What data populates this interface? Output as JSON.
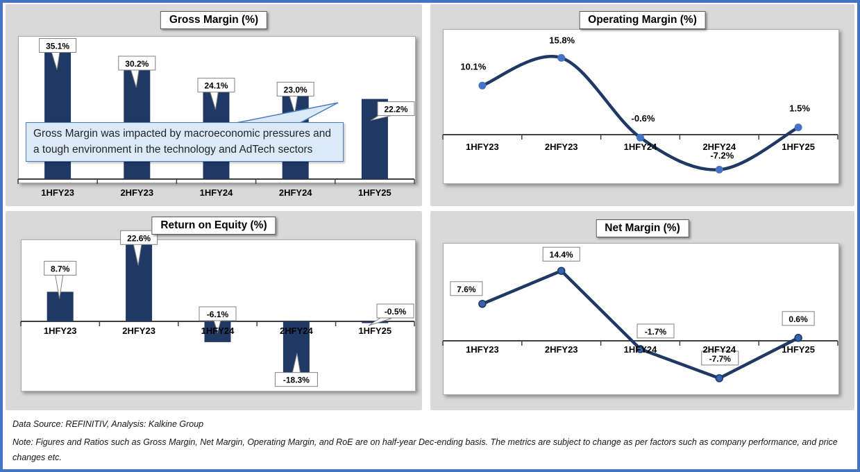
{
  "frame": {
    "border_color": "#4472C4",
    "panel_bg": "#D9D9D9"
  },
  "colors": {
    "bar": "#1F3864",
    "line": "#1F3864",
    "marker_operating": "#4472C4",
    "marker_net_fill": "#3763AD",
    "marker_net_stroke": "#16355F",
    "axis": "#404040",
    "label_box_border": "#808080",
    "callout_bg": "#DCE9F7",
    "callout_border": "#4C7CC0"
  },
  "chart_data": [
    {
      "type": "bar",
      "title": "Gross Margin (%)",
      "categories": [
        "1HFY23",
        "2HFY23",
        "1HFY24",
        "2HFY24",
        "1HFY25"
      ],
      "values": [
        35.1,
        30.2,
        24.1,
        23.0,
        22.2
      ],
      "data_labels": [
        "35.1%",
        "30.2%",
        "24.1%",
        "23.0%",
        "22.2%"
      ],
      "ylim": [
        0,
        40
      ],
      "grid": "off",
      "legend": "none"
    },
    {
      "type": "line",
      "title": "Operating Margin (%)",
      "categories": [
        "1HFY23",
        "2HFY23",
        "1HFY24",
        "2HFY24",
        "1HFY25"
      ],
      "values": [
        10.1,
        15.8,
        -0.6,
        -7.2,
        1.5
      ],
      "data_labels": [
        "10.1%",
        "15.8%",
        "-0.6%",
        "-7.2%",
        "1.5%"
      ],
      "ylim": [
        -12,
        22
      ],
      "smooth": true,
      "grid": "off",
      "legend": "none"
    },
    {
      "type": "bar",
      "title": "Return on Equity (%)",
      "categories": [
        "1HFY23",
        "2HFY23",
        "1HFY24",
        "2HFY24",
        "1HFY25"
      ],
      "values": [
        8.7,
        22.6,
        -6.1,
        -18.3,
        -0.5
      ],
      "data_labels": [
        "8.7%",
        "22.6%",
        "-6.1%",
        "-18.3%",
        "-0.5%"
      ],
      "ylim": [
        -22,
        26
      ],
      "grid": "off",
      "legend": "none"
    },
    {
      "type": "line",
      "title": "Net Margin (%)",
      "categories": [
        "1HFY23",
        "2HFY23",
        "1HFY24",
        "2HFY24",
        "1HFY25"
      ],
      "values": [
        7.6,
        14.4,
        -1.7,
        -7.7,
        0.6
      ],
      "data_labels": [
        "7.6%",
        "14.4%",
        "-1.7%",
        "-7.7%",
        "0.6%"
      ],
      "ylim": [
        -12,
        20
      ],
      "smooth": false,
      "grid": "off",
      "legend": "none"
    }
  ],
  "callout": {
    "text": "Gross Margin was impacted by macroeconomic pressures and a tough environment in the technology and AdTech sectors"
  },
  "footer": {
    "source": "Data Source: REFINITIV, Analysis: Kalkine Group",
    "note": "Note: Figures and Ratios such as Gross Margin, Net Margin, Operating Margin, and RoE are on half-year Dec-ending basis. The metrics are subject to change as per factors such as company performance, and price changes etc."
  }
}
